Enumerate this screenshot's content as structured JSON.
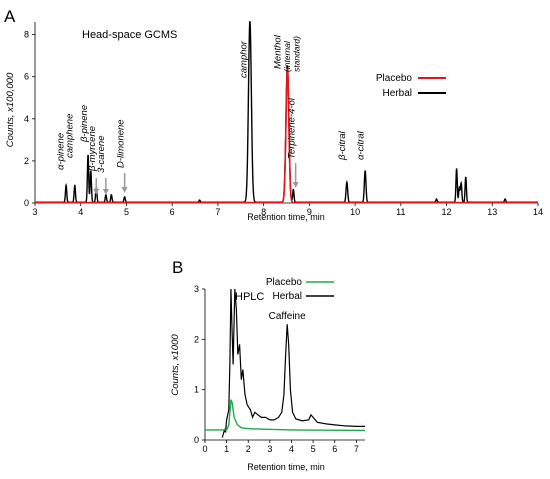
{
  "chart_data": [
    {
      "panel": "A",
      "type": "line",
      "title": "Head-space GCMS",
      "xlabel": "Retention time, min",
      "ylabel": "Counts, x100,000",
      "xlim": [
        3,
        14
      ],
      "ylim": [
        0,
        8.6
      ],
      "xticks": [
        3,
        4,
        5,
        6,
        7,
        8,
        9,
        10,
        11,
        12,
        13,
        14
      ],
      "yticks": [
        0,
        2,
        4,
        6,
        8
      ],
      "grid": false,
      "legend": "right",
      "series": [
        {
          "name": "Placebo",
          "color": "#e8141b",
          "peaks": [
            {
              "x": 8.52,
              "h": 6.4,
              "w": 0.045
            }
          ]
        },
        {
          "name": "Herbal",
          "color": "#000000",
          "peaks": [
            {
              "x": 3.68,
              "h": 0.8,
              "w": 0.02
            },
            {
              "x": 3.87,
              "h": 0.8,
              "w": 0.02
            },
            {
              "x": 4.16,
              "h": 2.25,
              "w": 0.02
            },
            {
              "x": 4.22,
              "h": 1.5,
              "w": 0.02
            },
            {
              "x": 4.34,
              "h": 0.7,
              "w": 0.02
            },
            {
              "x": 4.55,
              "h": 0.35,
              "w": 0.02
            },
            {
              "x": 4.67,
              "h": 0.35,
              "w": 0.02
            },
            {
              "x": 4.96,
              "h": 0.25,
              "w": 0.02
            },
            {
              "x": 6.6,
              "h": 0.1,
              "w": 0.02
            },
            {
              "x": 7.7,
              "h": 8.6,
              "w": 0.045
            },
            {
              "x": 8.52,
              "h": 6.5,
              "w": 0.045
            },
            {
              "x": 8.65,
              "h": 0.6,
              "w": 0.02
            },
            {
              "x": 9.82,
              "h": 0.95,
              "w": 0.025
            },
            {
              "x": 10.22,
              "h": 1.5,
              "w": 0.025
            },
            {
              "x": 11.78,
              "h": 0.15,
              "w": 0.02
            },
            {
              "x": 12.22,
              "h": 1.6,
              "w": 0.02
            },
            {
              "x": 12.28,
              "h": 0.7,
              "w": 0.02
            },
            {
              "x": 12.32,
              "h": 0.9,
              "w": 0.02
            },
            {
              "x": 12.42,
              "h": 1.2,
              "w": 0.02
            },
            {
              "x": 13.28,
              "h": 0.15,
              "w": 0.02
            }
          ]
        }
      ],
      "annotations": [
        {
          "text": "α-pinene",
          "x": 3.68
        },
        {
          "text": "camphene",
          "x": 3.87
        },
        {
          "text": "β-pinene",
          "x": 4.2
        },
        {
          "text": "β-myrcene",
          "x": 4.34
        },
        {
          "text": "3-carene",
          "x": 4.55
        },
        {
          "text": "D-limonene",
          "x": 4.96
        },
        {
          "text": "camphor",
          "x": 7.7
        },
        {
          "text": "Menthol",
          "x": 8.45
        },
        {
          "text": "(internal",
          "x": 8.62
        },
        {
          "text": "standard)",
          "x": 8.8
        },
        {
          "text": "Terpinene-4-ol",
          "x": 8.7
        },
        {
          "text": "β-citral",
          "x": 9.82
        },
        {
          "text": "α-citral",
          "x": 10.22
        }
      ]
    },
    {
      "panel": "B",
      "type": "line",
      "title": "HPLC",
      "xlabel": "Retention time, min",
      "ylabel": "Counts, x1000",
      "xlim": [
        0,
        7.4
      ],
      "ylim": [
        0,
        3
      ],
      "xticks": [
        0,
        1,
        2,
        3,
        4,
        5,
        6,
        7
      ],
      "yticks": [
        0,
        1,
        2,
        3
      ],
      "grid": false,
      "legend": "top-right",
      "series": [
        {
          "name": "Placebo",
          "color": "#1aab4a",
          "points": [
            [
              0,
              0.2
            ],
            [
              1,
              0.2
            ],
            [
              1.1,
              0.3
            ],
            [
              1.2,
              0.8
            ],
            [
              1.25,
              0.75
            ],
            [
              1.35,
              0.45
            ],
            [
              1.5,
              0.3
            ],
            [
              1.7,
              0.24
            ],
            [
              2.2,
              0.22
            ],
            [
              4.0,
              0.2
            ],
            [
              7.4,
              0.19
            ]
          ]
        },
        {
          "name": "Herbal",
          "color": "#000000",
          "points": [
            [
              0.8,
              0.05
            ],
            [
              0.9,
              0.2
            ],
            [
              0.95,
              0.15
            ],
            [
              1.0,
              0.4
            ],
            [
              1.1,
              0.6
            ],
            [
              1.15,
              1.5
            ],
            [
              1.2,
              3.0
            ],
            [
              1.25,
              2.2
            ],
            [
              1.3,
              1.5
            ],
            [
              1.38,
              3.0
            ],
            [
              1.45,
              2.6
            ],
            [
              1.52,
              1.7
            ],
            [
              1.6,
              1.9
            ],
            [
              1.68,
              1.2
            ],
            [
              1.75,
              1.4
            ],
            [
              1.85,
              0.9
            ],
            [
              1.95,
              0.7
            ],
            [
              2.1,
              0.6
            ],
            [
              2.2,
              0.45
            ],
            [
              2.3,
              0.55
            ],
            [
              2.45,
              0.5
            ],
            [
              2.6,
              0.45
            ],
            [
              2.8,
              0.45
            ],
            [
              3.0,
              0.4
            ],
            [
              3.2,
              0.4
            ],
            [
              3.4,
              0.45
            ],
            [
              3.55,
              0.55
            ],
            [
              3.65,
              0.9
            ],
            [
              3.72,
              1.6
            ],
            [
              3.8,
              2.3
            ],
            [
              3.87,
              1.9
            ],
            [
              3.95,
              1.0
            ],
            [
              4.05,
              0.55
            ],
            [
              4.2,
              0.42
            ],
            [
              4.5,
              0.38
            ],
            [
              4.8,
              0.4
            ],
            [
              4.9,
              0.5
            ],
            [
              5.0,
              0.45
            ],
            [
              5.2,
              0.35
            ],
            [
              5.6,
              0.32
            ],
            [
              6.0,
              0.3
            ],
            [
              6.5,
              0.28
            ],
            [
              7.0,
              0.27
            ],
            [
              7.4,
              0.27
            ]
          ]
        }
      ],
      "annotations": [
        {
          "text": "Caffeine",
          "x": 3.8
        }
      ]
    }
  ]
}
